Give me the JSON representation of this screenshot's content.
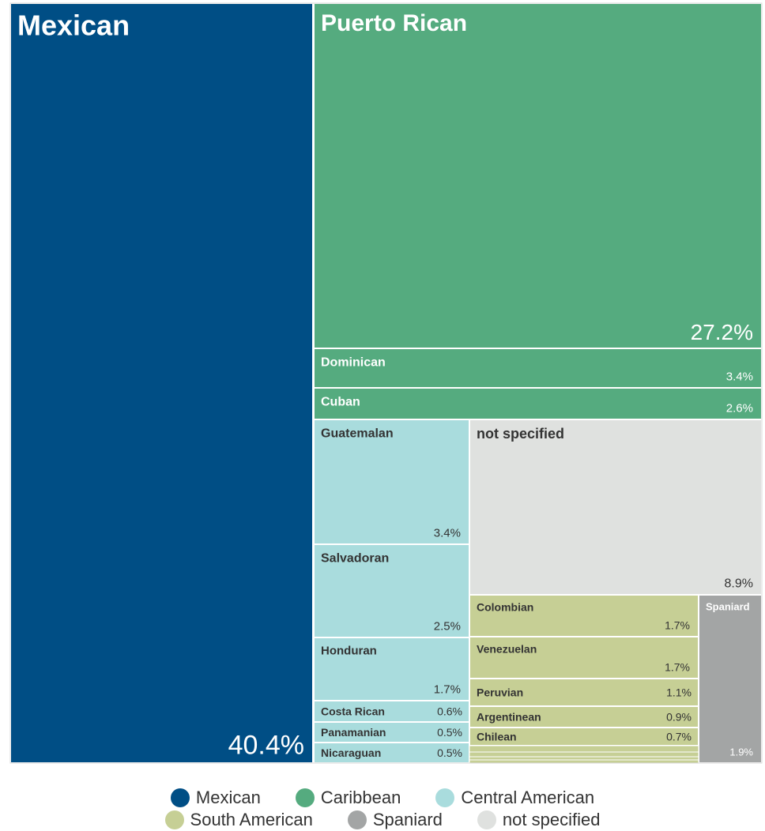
{
  "chart_data": {
    "type": "treemap",
    "colors": {
      "mexican": "#004e85",
      "caribbean": "#55ab7f",
      "central": "#a9dcdd",
      "south": "#c6cf95",
      "spaniard": "#a3a5a5",
      "notspecified": "#dfe1df"
    },
    "items": [
      {
        "name": "Mexican",
        "value": "40.4%",
        "group": "mexican"
      },
      {
        "name": "Puerto Rican",
        "value": "27.2%",
        "group": "caribbean"
      },
      {
        "name": "Dominican",
        "value": "3.4%",
        "group": "caribbean"
      },
      {
        "name": "Cuban",
        "value": "2.6%",
        "group": "caribbean"
      },
      {
        "name": "Guatemalan",
        "value": "3.4%",
        "group": "central"
      },
      {
        "name": "Salvadoran",
        "value": "2.5%",
        "group": "central"
      },
      {
        "name": "Honduran",
        "value": "1.7%",
        "group": "central"
      },
      {
        "name": "Costa Rican",
        "value": "0.6%",
        "group": "central"
      },
      {
        "name": "Panamanian",
        "value": "0.5%",
        "group": "central"
      },
      {
        "name": "Nicaraguan",
        "value": "0.5%",
        "group": "central"
      },
      {
        "name": "not specified",
        "value": "8.9%",
        "group": "notspecified"
      },
      {
        "name": "Colombian",
        "value": "1.7%",
        "group": "south"
      },
      {
        "name": "Venezuelan",
        "value": "1.7%",
        "group": "south"
      },
      {
        "name": "Peruvian",
        "value": "1.1%",
        "group": "south"
      },
      {
        "name": "Argentinean",
        "value": "0.9%",
        "group": "south"
      },
      {
        "name": "Chilean",
        "value": "0.7%",
        "group": "south"
      },
      {
        "name": "Spaniard",
        "value": "1.9%",
        "group": "spaniard"
      }
    ],
    "legend": [
      {
        "label": "Mexican",
        "group": "mexican"
      },
      {
        "label": "Caribbean",
        "group": "caribbean"
      },
      {
        "label": "Central American",
        "group": "central"
      },
      {
        "label": "South American",
        "group": "south"
      },
      {
        "label": "Spaniard",
        "group": "spaniard"
      },
      {
        "label": "not specified",
        "group": "notspecified"
      }
    ]
  }
}
